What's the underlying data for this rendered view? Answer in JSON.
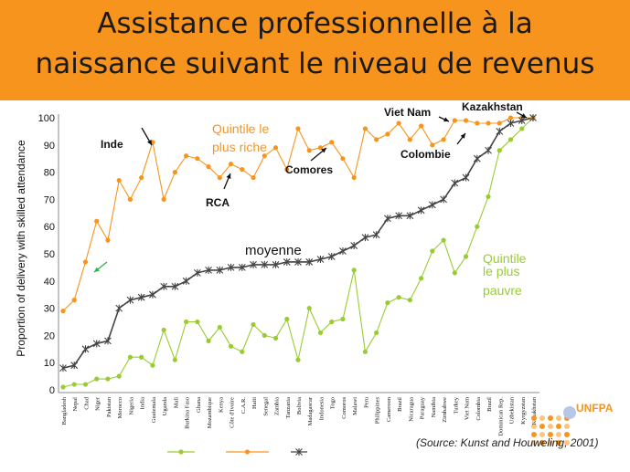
{
  "title_line1": "Assistance professionnelle à la",
  "title_line2": "naissance suivant le niveau de revenus",
  "source": "(Source: Kunst and Houweling, 2001)",
  "logo_text": "UNFPA",
  "colors": {
    "banner": "#f7941d",
    "richest": "#f7941d",
    "average": "#444444",
    "poorest": "#99cc33",
    "title_text": "#1a1a1a"
  },
  "chart_data": {
    "type": "line",
    "ylabel": "Proportion of delivery with skilled attendance",
    "xlabel": "",
    "ylim": [
      0,
      100
    ],
    "yticks": [
      0,
      10,
      20,
      30,
      40,
      50,
      60,
      70,
      80,
      90,
      100
    ],
    "grid": false,
    "categories": [
      "Bangladesh",
      "Nepal",
      "Chad",
      "Niger",
      "Pakistan",
      "Morocco",
      "Nigeria",
      "India",
      "Guatemala",
      "Uganda",
      "Mali",
      "Burkina Faso",
      "Ghana",
      "Mozambique",
      "Kenya",
      "Côte d'Ivoire",
      "C.A.R.",
      "Haiti",
      "Senegal",
      "Zambia",
      "Tanzania",
      "Bolivia",
      "Madagascar",
      "Indonesia",
      "Togo",
      "Comoros",
      "Malawi",
      "Peru",
      "Philippines",
      "Cameroon",
      "Brazil",
      "Nicaragua",
      "Paraguay",
      "Namibia",
      "Zimbabwe",
      "Turkey",
      "Viet Nam",
      "Colombia",
      "Brazil",
      "Dominican Rep.",
      "Uzbekistan",
      "Kyrgyzstan",
      "Kazakhstan"
    ],
    "series": [
      {
        "key": "poorest",
        "marker": "dot",
        "values": [
          1,
          2,
          2,
          4,
          4,
          5,
          12,
          12,
          9,
          22,
          11,
          25,
          25,
          18,
          23,
          16,
          14,
          24,
          20,
          19,
          26,
          11,
          30,
          21,
          25,
          26,
          44,
          14,
          21,
          32,
          34,
          33,
          41,
          51,
          55,
          43,
          49,
          60,
          71,
          88,
          92,
          96,
          100
        ]
      },
      {
        "key": "richest",
        "marker": "dot",
        "values": [
          29,
          33,
          47,
          62,
          55,
          77,
          70,
          78,
          91,
          70,
          80,
          86,
          85,
          82,
          78,
          83,
          81,
          78,
          86,
          89,
          81,
          96,
          88,
          89,
          91,
          85,
          78,
          96,
          92,
          94,
          98,
          92,
          97,
          90,
          92,
          99,
          99,
          98,
          98,
          98,
          100,
          100,
          100
        ]
      },
      {
        "key": "average",
        "marker": "star",
        "values": [
          8,
          9,
          15,
          17,
          18,
          30,
          33,
          34,
          35,
          38,
          38,
          40,
          43,
          44,
          44,
          45,
          45,
          46,
          46,
          46,
          47,
          47,
          47,
          48,
          49,
          51,
          53,
          56,
          57,
          63,
          64,
          64,
          66,
          68,
          70,
          76,
          78,
          85,
          88,
          95,
          98,
          99,
          100
        ]
      }
    ],
    "annotations": {
      "inde": "Inde",
      "rca": "RCA",
      "comores": "Comores",
      "vietnam": "Viet Nam",
      "kazakhstan": "Kazakhstan",
      "colombie": "Colombie",
      "moyenne": "moyenne",
      "riche_line1": "Quintile le",
      "riche_line2": "plus riche",
      "pauvre_line1": "Quintile",
      "pauvre_line2": "le plus",
      "pauvre_line3": "pauvre"
    }
  }
}
